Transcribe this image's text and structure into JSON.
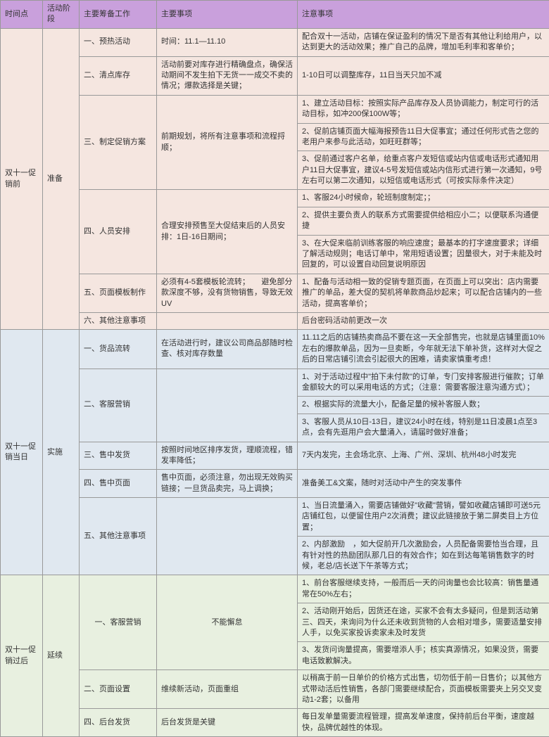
{
  "headers": [
    "时间点",
    "活动阶段",
    "主要筹备工作",
    "主要事项",
    "注意事项"
  ],
  "colors": {
    "header_bg": "#c9a0dc",
    "phase_pre_bg": "#f5e6e0",
    "phase_mid_bg": "#e0e8f0",
    "phase_post_bg": "#e8f0e0",
    "border": "#999999",
    "text": "#333333"
  },
  "phases": [
    {
      "time": "双十一促销前",
      "stage": "准备",
      "rows": [
        {
          "work": "一、预热活动",
          "matter": "时间：11.1—11.10",
          "notes": [
            "配合双十一活动，店铺在保证盈利的情况下是否有其他让利给用户，以达到更大的活动效果；推广自己的品牌，增加毛利率和客单价；"
          ]
        },
        {
          "work": "二、清点库存",
          "matter": "活动前要对库存进行精确盘点，确保活动期间不发生拍下无货一一成交不卖的情况；爆款选择是关键；",
          "notes": [
            "1-10日可以调整库存，11日当天只加不减"
          ]
        },
        {
          "work": "三、制定促销方案",
          "matter": "前期规划，将所有注意事项和流程捋顺；",
          "notes": [
            "1、建立活动目标：按照实际产品库存及人员协调能力，制定可行的活动目标，如冲200保100W等；",
            "2、促前店铺页面大幅海报预告11日大促事宜；通过任何形式告之您的老用户来参与此活动，如旺旺群等；",
            "3、促前通过客户名单，给重点客户发短信或站内信或电话形式通知用户11日大促事宜，建议4-5号发短信或站内信形式进行第一次通知，9号左右可以第二次通知，以短信或电话形式（可按实际条件决定）"
          ]
        },
        {
          "work": "四、人员安排",
          "matter": "合理安排预售至大促结束后的人员安排：1日-16日期间；",
          "notes": [
            "1、客服24小时候命，轮班制度制定；；",
            "2、提供主要负责人的联系方式需要提供给相应小二；以便联系沟通便捷",
            "3、在大促来临前训练客服的响应速度；最基本的打字速度要求；详细了解活动规则；电话订单中，常用短语设置；因量很大，对于未能及时回复的，可以设置自动回复说明原因"
          ]
        },
        {
          "work": "五、页面模板制作",
          "matter": "必须有4-5套模板轮流转；　　避免部分款深度不够，没有货物销售，导致无效UV",
          "notes": [
            "1、配备与活动相一致的促销专题页面，在页面上可以突出：店内需要推广的单品，差大促的契机将单款商品炒起来；可以配合店铺内的一些活动，提高客单价；"
          ]
        },
        {
          "work": "六、其他注意事项",
          "matter": "",
          "notes": [
            "后台密码活动前更改一次"
          ]
        }
      ]
    },
    {
      "time": "双十一促销当日",
      "stage": "实施",
      "rows": [
        {
          "work": "一、货品流转",
          "matter": "在活动进行时，建议公司商品部随时检查、核对库存数量",
          "notes": [
            "11.11之后的店铺热卖商品不要在这一天全部售完，也就是店铺里面10%左右的爆款单品，因为一旦卖断，今年就无法下单补货，这样对大促之后的日常店铺引流会引起很大的困难，请卖家慎重考虑！"
          ]
        },
        {
          "work": "二、客服营销",
          "matter": "",
          "notes": [
            "1、对于活动过程中\"拍下未付款\"的订单，专门安排客服进行催款；订单金额较大的可以采用电话的方式；（注意：需要客服注意沟通方式）；",
            "2、根据实际的流量大小，配备足量的候补客服人数；",
            "3、客服人员从10日-13日，建议24小时在线，特别是11日凌晨1点至3点，会有先逛用户会大量涌入，请届时做好准备；"
          ]
        },
        {
          "work": "三、售中发货",
          "matter": "按照时间地区排序发货，理顺流程，错发率降低；",
          "notes": [
            "7天内发完，主会场北京、上海、广州、深圳、杭州48小时发完"
          ]
        },
        {
          "work": "四、售中页面",
          "matter": "售中页面，必须注意，勿出现无效购买链接；一旦货品卖完，马上调换；",
          "notes": [
            "准备美工&文案，随时对活动中产生的突发事件"
          ]
        },
        {
          "work": "五、其他注意事项",
          "matter": "",
          "notes": [
            "1、当日流量涌入，需要店铺做好\"收藏\"营销，譬如收藏店铺即可送5元店铺红包，以便留住用户2次消费；建议此链接放于第二屏类目上方位置；",
            "2、内部激励　，如大促前开几次激励会，人员配备需要恰当合理，且有针对性的热励团队那几日的有效合作；如在到达每笔销售数字的时候，老总/店长送下午茶等方式；"
          ]
        }
      ]
    },
    {
      "time": "双十一促销过后",
      "stage": "延续",
      "rows": [
        {
          "work": "一、客服营销",
          "matter": "不能懈怠",
          "notes": [
            "1、前台客服继续支持，一般而后一天的问询量也会比较高：销售量通常在50%左右；",
            "2、活动刚开始后，因货还在途，买家不会有太多疑问，但是到活动第三、四天，来询问为什么还未收到货物的人会相对增多，需要适量安排人手，以免买家投诉卖家未及时发货",
            "3、发货问询量提高，需要增添人手；核实真源情况，如果没货，需要电话致歉解决。"
          ]
        },
        {
          "work": "二、页面设置",
          "matter": "维续新活动，页面重组",
          "notes": [
            "以稍高于前一日单价的价格方式出售，切勿低于前一日售价；以其他方式带动活后性销售，各部门需要继续配合，页面模板需要夹上另交叉变动1-2套；以备用"
          ]
        },
        {
          "work": "四、后台发货",
          "matter": "后台发货是关键",
          "notes": [
            "每日发单量需要流程管理，提高发单速度，保持前后台平衡，速度越快，品牌优越性的体现。"
          ]
        }
      ]
    }
  ]
}
